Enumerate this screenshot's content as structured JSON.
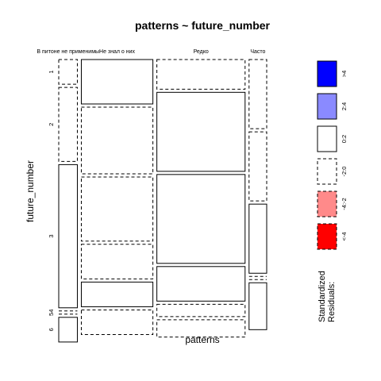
{
  "chart_data": {
    "type": "mosaic",
    "title": "patterns ~ future_number",
    "xlabel": "patterns",
    "ylabel": "future_number",
    "columns": [
      "В питоне не применимы",
      "Не знал о них",
      "Редко",
      "Часто"
    ],
    "rows": [
      "1",
      "2",
      "3",
      "4",
      "5",
      "6"
    ],
    "row_axis_labels": [
      "1",
      "2",
      "3",
      "54",
      "6"
    ],
    "column_widths": [
      0.095,
      0.365,
      0.45,
      0.09
    ],
    "cells": [
      {
        "column": "В питоне не применимы",
        "proportions": [
          0.1,
          0.3,
          0.58,
          0.0,
          0.0,
          0.1
        ],
        "residual_sign": [
          "neg",
          "neg",
          "pos",
          "zero",
          "zero",
          "pos"
        ]
      },
      {
        "column": "Не знал о них",
        "proportions": [
          0.18,
          0.27,
          0.26,
          0.14,
          0.1,
          0.1
        ],
        "residual_sign": [
          "pos",
          "neg",
          "neg",
          "neg",
          "pos",
          "neg"
        ]
      },
      {
        "column": "Редко",
        "proportions": [
          0.12,
          0.32,
          0.36,
          0.14,
          0.05,
          0.07
        ],
        "residual_sign": [
          "neg",
          "pos",
          "pos",
          "pos",
          "neg",
          "neg"
        ]
      },
      {
        "column": "Часто",
        "proportions": [
          0.28,
          0.28,
          0.28,
          0.0,
          0.0,
          0.19
        ],
        "residual_sign": [
          "neg",
          "neg",
          "pos",
          "neg",
          "zero",
          "pos"
        ]
      }
    ],
    "legend": {
      "title": "Standardized Residuals:",
      "entries": [
        {
          "label": ">4",
          "color": "#0000ff",
          "border": "solid"
        },
        {
          "label": "2:4",
          "color": "#8a8aff",
          "border": "solid"
        },
        {
          "label": "0:2",
          "color": "#ffffff",
          "border": "solid"
        },
        {
          "label": "-2:0",
          "color": "#ffffff",
          "border": "dashed"
        },
        {
          "label": "-4:-2",
          "color": "#ff8a8a",
          "border": "dashed"
        },
        {
          "label": "<-4",
          "color": "#ff0000",
          "border": "dashed"
        }
      ]
    }
  }
}
